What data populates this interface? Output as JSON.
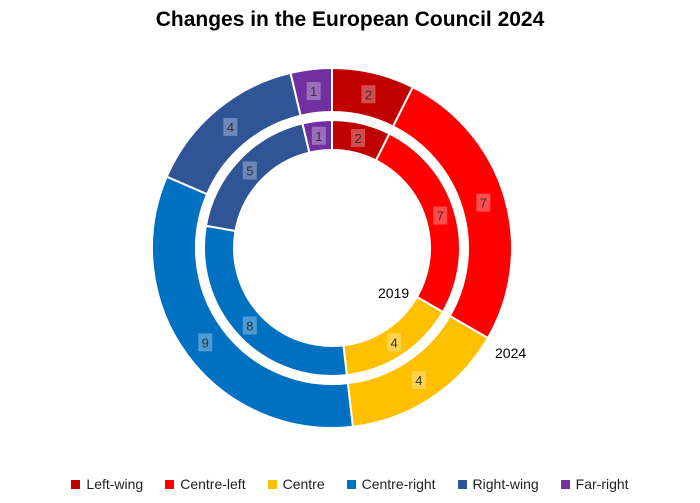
{
  "chart_data": {
    "type": "doughnut",
    "title": "Changes in the European Council 2024",
    "categories": [
      "Left-wing",
      "Centre-left",
      "Centre",
      "Centre-right",
      "Right-wing",
      "Far-right"
    ],
    "colors": [
      "#C00000",
      "#FF0000",
      "#FFC000",
      "#0070C0",
      "#2F5597",
      "#7030A0"
    ],
    "series": [
      {
        "name": "2019",
        "ring": "inner",
        "values": [
          2,
          7,
          4,
          8,
          5,
          1
        ]
      },
      {
        "name": "2024",
        "ring": "outer",
        "values": [
          2,
          7,
          4,
          9,
          4,
          1
        ]
      }
    ],
    "legend_position": "bottom"
  }
}
